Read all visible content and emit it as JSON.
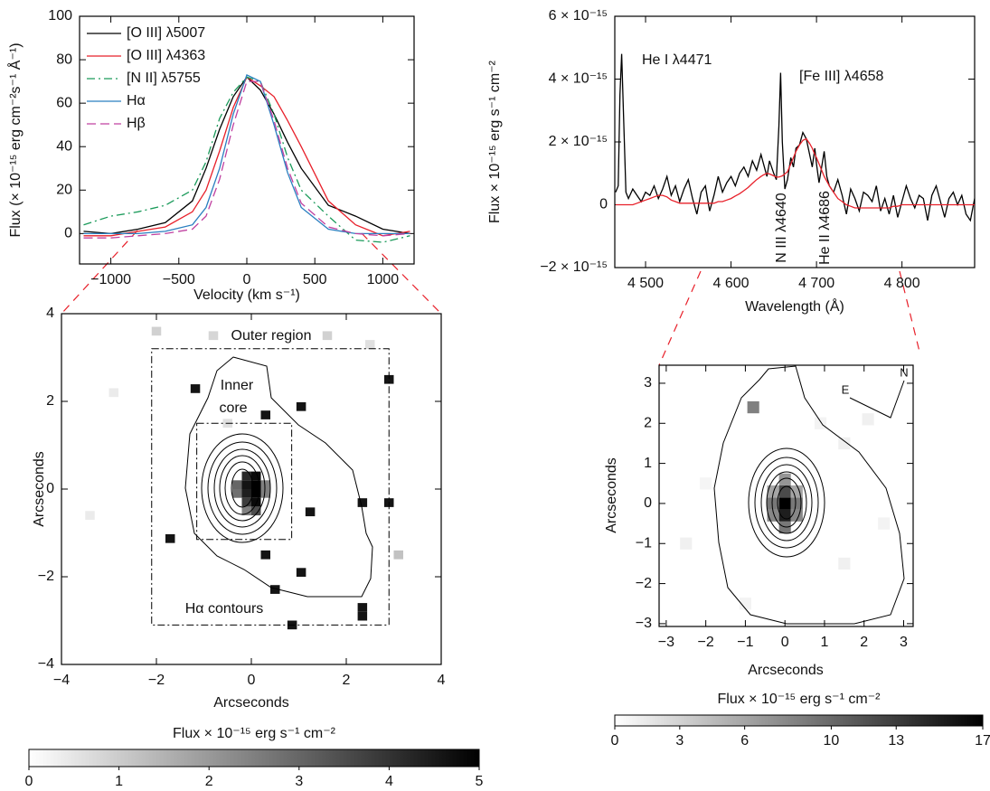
{
  "chart_data": [
    {
      "type": "line",
      "xlabel": "Velocity (km s⁻¹)",
      "ylabel": "Flux (× 10⁻¹⁵ erg cm⁻²s⁻¹ Å⁻¹)",
      "x": [
        -1200,
        -1000,
        -800,
        -600,
        -400,
        -300,
        -200,
        -100,
        0,
        100,
        200,
        300,
        400,
        600,
        800,
        1000,
        1200
      ],
      "series": [
        {
          "name": "[O III] λ5007",
          "color": "#000000",
          "style": "solid",
          "values": [
            1,
            0,
            2,
            5,
            15,
            30,
            48,
            63,
            72,
            66,
            55,
            42,
            30,
            13,
            8,
            2,
            0
          ]
        },
        {
          "name": "[O III] λ4363",
          "color": "#e8202a",
          "style": "solid",
          "values": [
            -1,
            -1,
            1,
            3,
            10,
            20,
            38,
            58,
            72,
            68,
            63,
            52,
            40,
            15,
            4,
            -1,
            1
          ]
        },
        {
          "name": "[N II] λ5755",
          "color": "#1a9a5a",
          "style": "dashdot",
          "values": [
            4,
            8,
            10,
            13,
            20,
            33,
            53,
            65,
            72,
            70,
            55,
            35,
            20,
            8,
            -3,
            -4,
            -1
          ]
        },
        {
          "name": "Hα",
          "color": "#2a7fc0",
          "style": "solid",
          "values": [
            0,
            0,
            0,
            1,
            4,
            12,
            30,
            55,
            73,
            70,
            50,
            28,
            12,
            2,
            0,
            0,
            0
          ]
        },
        {
          "name": "Hβ",
          "color": "#c040a0",
          "style": "dashed",
          "values": [
            -2,
            -2,
            -1,
            0,
            2,
            8,
            25,
            50,
            70,
            70,
            52,
            30,
            14,
            3,
            0,
            -1,
            0
          ]
        }
      ],
      "legend": "upper left",
      "xlim": [
        -1230,
        1230
      ],
      "ylim": [
        -14,
        100
      ],
      "xticks": [
        {
          "value": -1000,
          "label": "−1000"
        },
        {
          "value": -500,
          "label": "−500"
        },
        0,
        500,
        1000
      ],
      "yticks": [
        0,
        20,
        40,
        60,
        80,
        100
      ]
    },
    {
      "type": "line",
      "xlabel": "Wavelength (Å)",
      "ylabel": "Flux × 10⁻¹⁵ erg s⁻¹ cm⁻²",
      "annotations": [
        "He I λ4471",
        "[Fe III] λ4658",
        "N III λ4640",
        "He II λ4686"
      ],
      "x": [
        4465,
        4468,
        4470,
        4472,
        4474,
        4477,
        4480,
        4485,
        4490,
        4495,
        4500,
        4505,
        4510,
        4515,
        4520,
        4525,
        4530,
        4535,
        4540,
        4545,
        4550,
        4555,
        4560,
        4565,
        4570,
        4575,
        4580,
        4585,
        4590,
        4595,
        4600,
        4605,
        4610,
        4615,
        4620,
        4625,
        4630,
        4635,
        4638,
        4642,
        4645,
        4650,
        4653,
        4656,
        4658,
        4660,
        4663,
        4666,
        4670,
        4673,
        4676,
        4680,
        4684,
        4688,
        4692,
        4695,
        4698,
        4700,
        4703,
        4706,
        4709,
        4712,
        4715,
        4720,
        4725,
        4730,
        4735,
        4740,
        4745,
        4750,
        4755,
        4760,
        4765,
        4770,
        4775,
        4780,
        4785,
        4790,
        4795,
        4800,
        4805,
        4810,
        4815,
        4820,
        4825,
        4830,
        4835,
        4840,
        4845,
        4850,
        4855,
        4860,
        4865,
        4870,
        4875,
        4880,
        4885
      ],
      "series": [
        {
          "color": "#000000",
          "style": "solid",
          "values": [
            0.4,
            0.6,
            3.5,
            4.8,
            3.0,
            0.4,
            0.2,
            0.5,
            0.3,
            0.1,
            0.4,
            0.3,
            0.6,
            0.2,
            0.5,
            0.9,
            0.3,
            0.6,
            0.1,
            0.5,
            0.8,
            0.2,
            -0.3,
            0.4,
            0.6,
            -0.2,
            0.3,
            0.9,
            0.4,
            0.7,
            0.9,
            0.6,
            1.0,
            1.2,
            0.9,
            1.4,
            1.1,
            1.6,
            1.3,
            0.9,
            1.4,
            1.0,
            0.8,
            2.5,
            4.2,
            2.0,
            0.5,
            0.8,
            1.5,
            1.2,
            1.8,
            1.9,
            2.3,
            2.1,
            1.6,
            1.2,
            1.8,
            1.3,
            0.7,
            1.2,
            1.7,
            0.9,
            0.6,
            0.4,
            0.8,
            0.3,
            -0.3,
            0.5,
            0.2,
            -0.2,
            0.4,
            0.3,
            0.1,
            0.6,
            -0.2,
            0.2,
            -0.3,
            0.3,
            -0.4,
            0.1,
            0.6,
            0.2,
            -0.1,
            0.3,
            0.2,
            -0.5,
            0.3,
            0.6,
            0.1,
            -0.4,
            0.2,
            0.4,
            0,
            0.3,
            -0.3,
            -0.5,
            0.2
          ]
        },
        {
          "color": "#e8202a",
          "style": "solid",
          "values": [
            0,
            0,
            0,
            0,
            0,
            0,
            0,
            0,
            0.05,
            0.1,
            0.15,
            0.2,
            0.25,
            0.3,
            0.3,
            0.25,
            0.15,
            0.1,
            0.05,
            0.05,
            0.05,
            0.05,
            0.05,
            0.05,
            0.05,
            0.05,
            0.05,
            0.1,
            0.1,
            0.15,
            0.2,
            0.28,
            0.35,
            0.45,
            0.55,
            0.68,
            0.8,
            0.9,
            0.95,
            1.0,
            0.98,
            0.92,
            0.88,
            0.88,
            0.9,
            0.92,
            0.98,
            1.05,
            1.3,
            1.5,
            1.7,
            1.9,
            2.05,
            2.1,
            1.95,
            1.8,
            1.6,
            1.5,
            1.3,
            1.1,
            0.9,
            0.75,
            0.6,
            0.4,
            0.2,
            0.1,
            0,
            -0.05,
            -0.1,
            -0.1,
            -0.1,
            -0.1,
            -0.1,
            -0.1,
            -0.1,
            -0.1,
            -0.1,
            -0.05,
            -0.05,
            0,
            0,
            0,
            0,
            0,
            0,
            0,
            0,
            0,
            0,
            0,
            0,
            0,
            0,
            0,
            0,
            0,
            0
          ]
        }
      ],
      "xlim": [
        4464,
        4885
      ],
      "ylim": [
        -2,
        6
      ],
      "xticks": [
        {
          "value": 4500,
          "label": "4 500"
        },
        {
          "value": 4600,
          "label": "4 600"
        },
        {
          "value": 4700,
          "label": "4 700"
        },
        {
          "value": 4800,
          "label": "4 800"
        }
      ],
      "yticks": [
        {
          "value": -2,
          "label": "−2 × 10⁻¹⁵"
        },
        0,
        {
          "value": 2,
          "label": "2 × 10⁻¹⁵"
        },
        {
          "value": 4,
          "label": "4 × 10⁻¹⁵"
        },
        {
          "value": 6,
          "label": "6 × 10⁻¹⁵"
        }
      ]
    },
    {
      "type": "heatmap",
      "xlabel": "Arcseconds",
      "ylabel": "Arcseconds",
      "annotations": [
        "Outer region",
        "Inner",
        "core",
        "Hα contours"
      ],
      "regions": [
        {
          "x": [
            -2.1,
            2.9
          ],
          "y": [
            -3.1,
            3.2
          ]
        },
        {
          "x": [
            -1.15,
            0.85
          ],
          "y": [
            -1.15,
            1.5
          ]
        }
      ],
      "x": [
        -1.18,
        0.3,
        1.05,
        2.9,
        2.34,
        2.9,
        1.24,
        -1.71,
        0.3,
        1.05,
        0.5,
        2.34,
        2.34,
        0.86,
        -0.1,
        0.1,
        -0.1,
        0.1,
        -0.1,
        0.1,
        0.1,
        -0.1,
        -0.1,
        0.1,
        -0.3,
        -0.3,
        0.3,
        0.3,
        -2,
        -0.8,
        1.6,
        3.1,
        -0.5,
        -2.9,
        2.5,
        -3.4
      ],
      "y": [
        2.29,
        1.69,
        1.88,
        2.5,
        -0.31,
        -0.31,
        -0.52,
        -1.13,
        -1.5,
        -1.9,
        -2.29,
        -2.7,
        -2.9,
        -3.1,
        0.3,
        0.3,
        0.1,
        0.1,
        -0.1,
        -0.1,
        -0.3,
        -0.3,
        -0.5,
        -0.5,
        0.1,
        -0.1,
        0.1,
        -0.1,
        3.6,
        3.5,
        3.5,
        -1.5,
        1.5,
        2.2,
        3.3,
        -0.6
      ],
      "values": [
        4.6,
        4.6,
        4.6,
        4.6,
        4.6,
        4.6,
        4.6,
        4.6,
        4.6,
        4.6,
        4.6,
        4.6,
        4.6,
        4.6,
        4.2,
        4.8,
        4.6,
        5,
        4.4,
        5,
        4.8,
        3.8,
        2.5,
        3.5,
        3,
        2.8,
        2.5,
        2.5,
        0.9,
        0.8,
        0.9,
        1.2,
        0.6,
        0.4,
        0.6,
        0.4
      ],
      "xlim": [
        -4,
        4
      ],
      "ylim": [
        -4,
        4
      ],
      "xticks": [
        {
          "value": -4,
          "label": "−4"
        },
        {
          "value": -2,
          "label": "−2"
        },
        0,
        2,
        4
      ],
      "yticks": [
        {
          "value": -4,
          "label": "−4"
        },
        {
          "value": -2,
          "label": "−2"
        },
        0,
        2,
        4
      ]
    },
    {
      "type": "colorbar",
      "title": "Flux × 10⁻¹⁵ erg s⁻¹ cm⁻²",
      "colors": [
        "#ffffff",
        "#000000"
      ],
      "xlim": [
        0,
        5
      ],
      "xticks": [
        0,
        1,
        2,
        3,
        4,
        5
      ]
    },
    {
      "type": "heatmap",
      "xlabel": "Arcseconds",
      "ylabel": "Arcseconds",
      "annotations": [
        "E",
        "N"
      ],
      "x": [
        -0.8,
        0,
        0,
        0,
        -0.3,
        0.3,
        -0.3,
        0.3,
        0,
        0,
        -0.3,
        0.3,
        2.1,
        1.5,
        -2.5,
        1.5,
        -1,
        2.5,
        -2,
        0.9
      ],
      "y": [
        2.4,
        0,
        -0.3,
        0.3,
        0,
        0,
        -0.3,
        -0.3,
        -0.6,
        0.6,
        0.3,
        0.3,
        2.1,
        1.5,
        -1,
        -1.5,
        -2.5,
        -0.5,
        0.5,
        2
      ],
      "values": [
        8.5,
        17,
        15,
        12,
        9,
        9,
        8,
        8,
        9,
        7,
        6,
        6,
        1,
        1,
        1,
        1,
        0.8,
        0.8,
        0.7,
        0.8
      ],
      "xlim": [
        -3.18,
        3.24
      ],
      "ylim": [
        -3.07,
        3.45
      ],
      "xticks": [
        {
          "value": -3,
          "label": "−3"
        },
        {
          "value": -2,
          "label": "−2"
        },
        {
          "value": -1,
          "label": "−1"
        },
        0,
        1,
        2,
        3
      ],
      "yticks": [
        {
          "value": -3,
          "label": "−3"
        },
        {
          "value": -2,
          "label": "−2"
        },
        {
          "value": -1,
          "label": "−1"
        },
        0,
        1,
        2,
        3
      ]
    },
    {
      "type": "colorbar",
      "title": "Flux × 10⁻¹⁵ erg s⁻¹ cm⁻²",
      "colors": [
        "#ffffff",
        "#000000"
      ],
      "xlim": [
        0,
        17
      ],
      "xticks": [
        0,
        3,
        6,
        10,
        13,
        17
      ]
    }
  ]
}
